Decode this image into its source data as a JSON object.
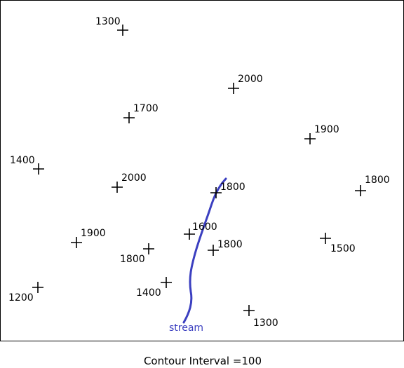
{
  "map": {
    "caption": "Contour Interval =100",
    "stream_label": "stream",
    "stream_color": "#3b3fc0",
    "marker_color": "#000000",
    "elevation_points": [
      {
        "id": "p1",
        "label": "1300"
      },
      {
        "id": "p2",
        "label": "2000"
      },
      {
        "id": "p3",
        "label": "1700"
      },
      {
        "id": "p4",
        "label": "1900"
      },
      {
        "id": "p5",
        "label": "1400"
      },
      {
        "id": "p6",
        "label": "2000"
      },
      {
        "id": "p7",
        "label": "1800"
      },
      {
        "id": "p8",
        "label": "1800"
      },
      {
        "id": "p9",
        "label": "1600"
      },
      {
        "id": "p10",
        "label": "1900"
      },
      {
        "id": "p11",
        "label": "1500"
      },
      {
        "id": "p12",
        "label": "1800"
      },
      {
        "id": "p13",
        "label": "1800"
      },
      {
        "id": "p14",
        "label": "1200"
      },
      {
        "id": "p15",
        "label": "1400"
      },
      {
        "id": "p16",
        "label": "1300"
      }
    ]
  }
}
